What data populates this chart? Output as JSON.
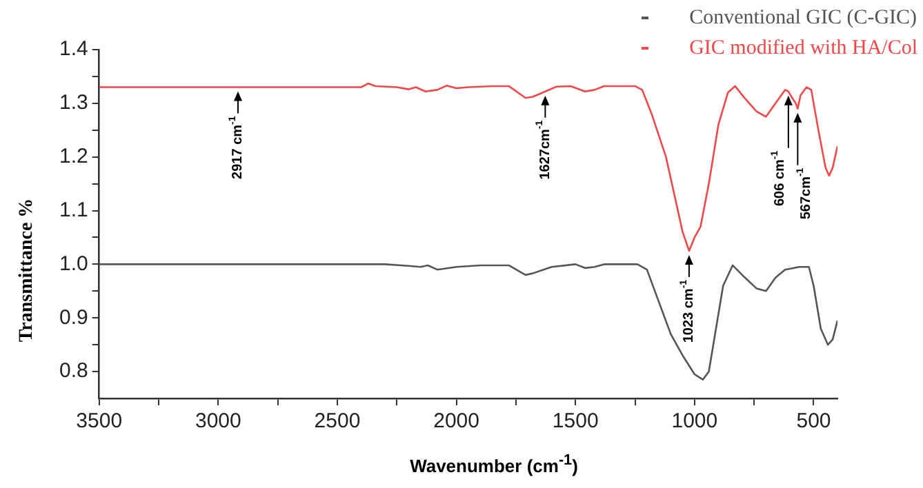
{
  "chart_data": {
    "type": "line",
    "xlabel": "Wavenumber (cm$^{-1}$)",
    "ylabel": "Transmittance %",
    "xlim": [
      3500,
      400
    ],
    "ylim": [
      0.75,
      1.4
    ],
    "xticks": [
      3500,
      {
        "value": 3250,
        "label": null
      },
      3000,
      {
        "value": 2750,
        "label": null
      },
      2500,
      {
        "value": 2250,
        "label": null
      },
      2000,
      {
        "value": 1750,
        "label": null
      },
      1500,
      {
        "value": 1250,
        "label": null
      },
      1000,
      {
        "value": 750,
        "label": null
      },
      500
    ],
    "yticks": [
      {
        "value": 0.8,
        "label": "0.8"
      },
      {
        "value": 0.85,
        "label": null
      },
      {
        "value": 0.9,
        "label": "0.9"
      },
      {
        "value": 0.95,
        "label": null
      },
      {
        "value": 1,
        "label": "1.0"
      },
      {
        "value": 1.05,
        "label": null
      },
      {
        "value": 1.1,
        "label": "1.1"
      },
      {
        "value": 1.15,
        "label": null
      },
      {
        "value": 1.2,
        "label": "1.2"
      },
      {
        "value": 1.25,
        "label": null
      },
      {
        "value": 1.3,
        "label": "1.3"
      },
      {
        "value": 1.35,
        "label": null
      },
      {
        "value": 1.4,
        "label": "1.4"
      }
    ],
    "grid": false,
    "legend": "top right",
    "marker": "none",
    "line_style": "solid",
    "series": [
      {
        "name": "Conventional GIC (C-GIC)",
        "color": "#555555",
        "x": [
          3500,
          2380,
          2300,
          2200,
          2150,
          2120,
          2080,
          2000,
          1900,
          1780,
          1710,
          1680,
          1600,
          1500,
          1460,
          1420,
          1380,
          1240,
          1200,
          1150,
          1100,
          1050,
          1000,
          965,
          940,
          910,
          880,
          840,
          800,
          740,
          700,
          660,
          620,
          560,
          520,
          500,
          470,
          440,
          420,
          400
        ],
        "values": [
          1.0,
          1.0,
          1.0,
          0.997,
          0.995,
          0.998,
          0.99,
          0.995,
          0.998,
          0.998,
          0.98,
          0.983,
          0.995,
          1.0,
          0.993,
          0.995,
          1.0,
          1.0,
          0.99,
          0.93,
          0.87,
          0.83,
          0.795,
          0.785,
          0.8,
          0.88,
          0.96,
          0.998,
          0.98,
          0.955,
          0.95,
          0.975,
          0.99,
          0.995,
          0.995,
          0.96,
          0.88,
          0.85,
          0.86,
          0.895
        ]
      },
      {
        "name": "GIC modified with HA/Col",
        "color": "#f04848",
        "x": [
          3500,
          2400,
          2370,
          2340,
          2250,
          2200,
          2170,
          2130,
          2080,
          2040,
          2000,
          1950,
          1850,
          1780,
          1710,
          1680,
          1627,
          1580,
          1520,
          1460,
          1420,
          1380,
          1250,
          1220,
          1180,
          1120,
          1080,
          1050,
          1023,
          1000,
          975,
          940,
          900,
          860,
          830,
          790,
          740,
          700,
          660,
          620,
          606,
          590,
          575,
          567,
          555,
          530,
          510,
          480,
          450,
          435,
          420,
          400
        ],
        "values": [
          1.33,
          1.33,
          1.337,
          1.332,
          1.33,
          1.326,
          1.33,
          1.322,
          1.325,
          1.333,
          1.328,
          1.33,
          1.332,
          1.332,
          1.31,
          1.312,
          1.322,
          1.331,
          1.332,
          1.322,
          1.325,
          1.332,
          1.332,
          1.325,
          1.28,
          1.2,
          1.12,
          1.06,
          1.025,
          1.05,
          1.07,
          1.15,
          1.26,
          1.32,
          1.332,
          1.31,
          1.285,
          1.275,
          1.3,
          1.325,
          1.322,
          1.31,
          1.3,
          1.29,
          1.315,
          1.33,
          1.325,
          1.25,
          1.18,
          1.165,
          1.18,
          1.22
        ]
      }
    ],
    "annotations": [
      {
        "text": "2917 cm$^{-1}$",
        "x": 2917,
        "y": 1.33
      },
      {
        "text": "1627cm$^{-1}$",
        "x": 1627,
        "y": 1.322
      },
      {
        "text": "1023 cm$^{-1}$",
        "x": 1023,
        "y": 1.025
      },
      {
        "text": "606 cm$^{-1}$",
        "x": 606,
        "y": 1.322
      },
      {
        "text": "567cm$^{-1}$",
        "x": 567,
        "y": 1.29
      }
    ]
  }
}
